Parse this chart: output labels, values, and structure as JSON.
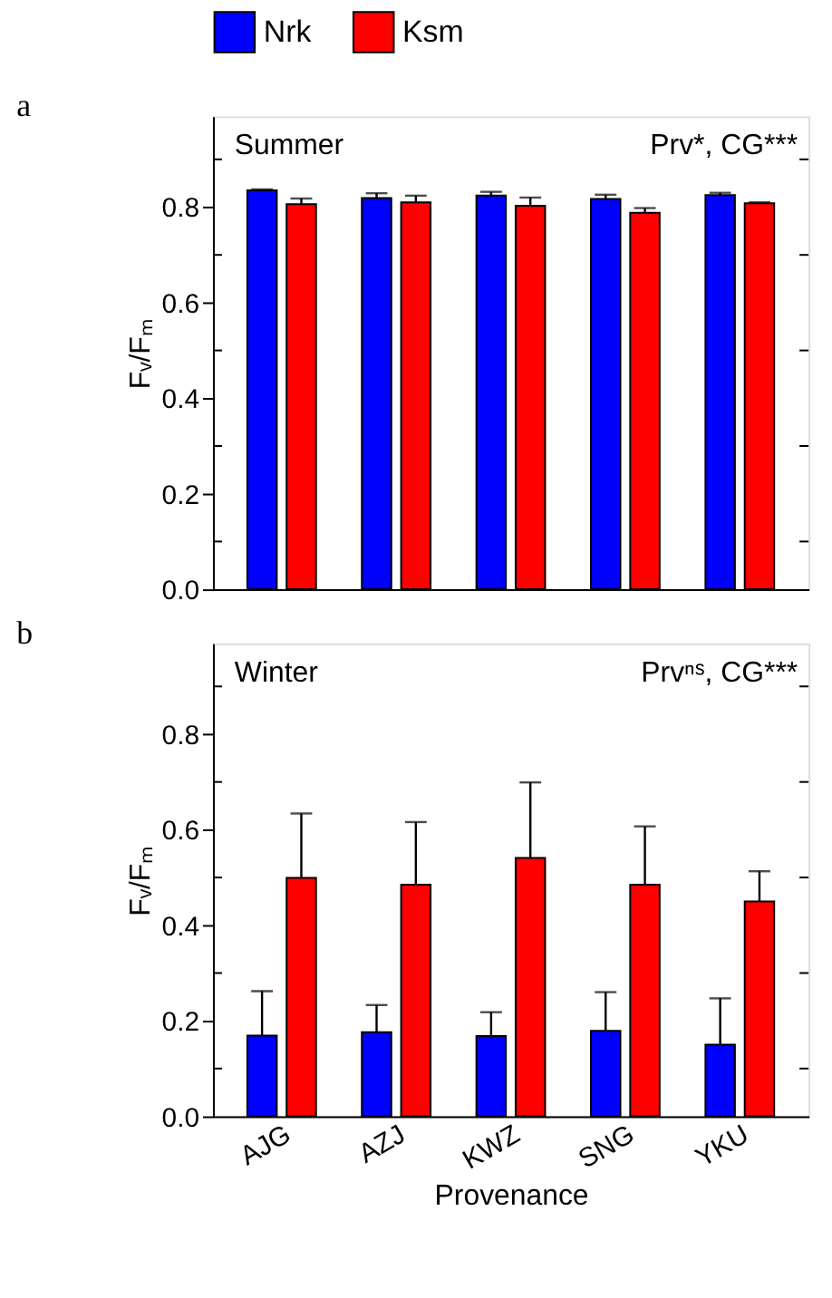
{
  "chart_data": [
    {
      "type": "bar",
      "title": "a",
      "categories": [
        null,
        null,
        null,
        null,
        null
      ],
      "ylabel": "Fᵥ/Fₘ",
      "ylim": [
        0,
        0.99
      ],
      "yticks": [
        {
          "value": 0,
          "label": "0.0"
        },
        {
          "value": 0.1,
          "label": null
        },
        {
          "value": 0.2,
          "label": "0.2"
        },
        {
          "value": 0.3,
          "label": null
        },
        {
          "value": 0.4,
          "label": "0.4"
        },
        {
          "value": 0.5,
          "label": null
        },
        {
          "value": 0.6,
          "label": "0.6"
        },
        {
          "value": 0.7,
          "label": null
        },
        {
          "value": 0.8,
          "label": "0.8"
        },
        {
          "value": 0.9,
          "label": null
        }
      ],
      "series": [
        {
          "name": "Nrk",
          "color": "#0000ff",
          "values": [
            0.835,
            0.819,
            0.824,
            0.817,
            0.825
          ],
          "errors": [
            [
              0.835,
              0.837
            ],
            [
              0.819,
              0.829
            ],
            [
              0.824,
              0.832
            ],
            [
              0.817,
              0.826
            ],
            [
              0.825,
              0.83
            ]
          ]
        },
        {
          "name": "Ksm",
          "color": "#ff0000",
          "values": [
            0.806,
            0.81,
            0.803,
            0.788,
            0.808
          ],
          "errors": [
            [
              0.806,
              0.818
            ],
            [
              0.81,
              0.824
            ],
            [
              0.803,
              0.82
            ],
            [
              0.788,
              0.798
            ],
            [
              0.808,
              0.81
            ]
          ]
        }
      ],
      "annotations": [
        "Summer",
        "Prv*, CG***"
      ],
      "legend": "top",
      "tick_labels": "y",
      "grid": false
    },
    {
      "type": "bar",
      "title": "b",
      "categories": [
        "AJG",
        "AZJ",
        "KWZ",
        "SNG",
        "YKU"
      ],
      "xlabel": "Provenance",
      "ylabel": "Fᵥ/Fₘ",
      "ylim": [
        0,
        0.99
      ],
      "yticks": [
        {
          "value": 0,
          "label": "0.0"
        },
        {
          "value": 0.1,
          "label": null
        },
        {
          "value": 0.2,
          "label": "0.2"
        },
        {
          "value": 0.3,
          "label": null
        },
        {
          "value": 0.4,
          "label": "0.4"
        },
        {
          "value": 0.5,
          "label": null
        },
        {
          "value": 0.6,
          "label": "0.6"
        },
        {
          "value": 0.7,
          "label": null
        },
        {
          "value": 0.8,
          "label": "0.8"
        },
        {
          "value": 0.9,
          "label": null
        }
      ],
      "series": [
        {
          "name": "Nrk",
          "color": "#0000ff",
          "values": [
            0.169,
            0.176,
            0.168,
            0.179,
            0.15
          ],
          "errors": [
            [
              0.169,
              0.262
            ],
            [
              0.176,
              0.233
            ],
            [
              0.168,
              0.218
            ],
            [
              0.179,
              0.26
            ],
            [
              0.15,
              0.247
            ]
          ]
        },
        {
          "name": "Ksm",
          "color": "#ff0000",
          "values": [
            0.499,
            0.485,
            0.541,
            0.485,
            0.45
          ],
          "errors": [
            [
              0.499,
              0.634
            ],
            [
              0.485,
              0.616
            ],
            [
              0.541,
              0.699
            ],
            [
              0.485,
              0.607
            ],
            [
              0.45,
              0.513
            ]
          ]
        }
      ],
      "annotations": [
        "Winter",
        "Prvⁿˢ, CG***"
      ],
      "legend": false,
      "grid": false
    }
  ]
}
